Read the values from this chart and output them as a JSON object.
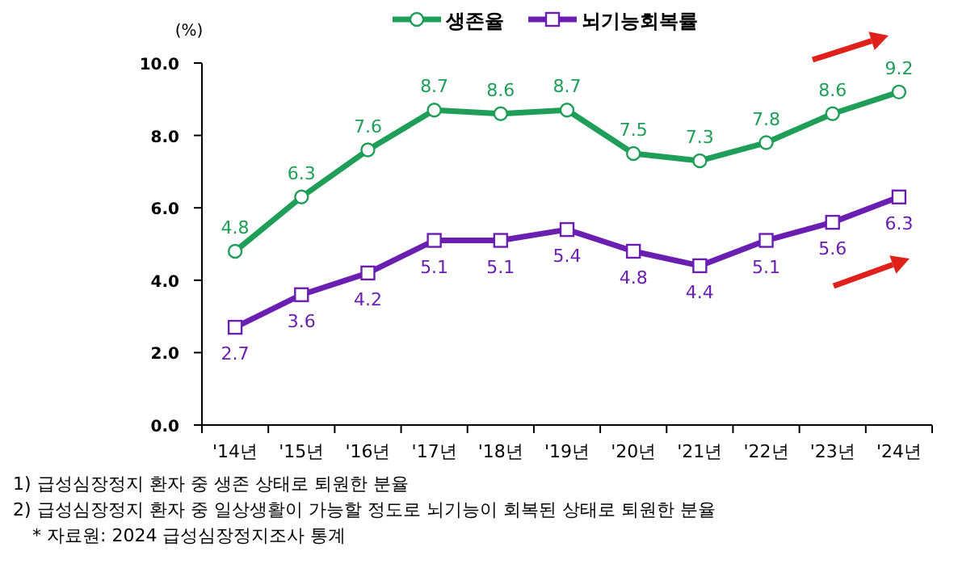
{
  "chart_data": {
    "type": "line",
    "ylabel": "(%)",
    "categories": [
      "'14년",
      "'15년",
      "'16년",
      "'17년",
      "'18년",
      "'19년",
      "'20년",
      "'21년",
      "'22년",
      "'23년",
      "'24년"
    ],
    "series": [
      {
        "name": "생존율",
        "color": "#1f9e5a",
        "marker": "circle",
        "values": [
          4.8,
          6.3,
          7.6,
          8.7,
          8.6,
          8.7,
          7.5,
          7.3,
          7.8,
          8.6,
          9.2
        ]
      },
      {
        "name": "뇌기능회복률",
        "color": "#6a1fb0",
        "marker": "square",
        "values": [
          2.7,
          3.6,
          4.2,
          5.1,
          5.1,
          5.4,
          4.8,
          4.4,
          5.1,
          5.6,
          6.3
        ]
      }
    ],
    "ylim": [
      0,
      10
    ],
    "yticks": [
      {
        "value": 0,
        "label": "0.0"
      },
      {
        "value": 2,
        "label": "2.0"
      },
      {
        "value": 4,
        "label": "4.0"
      },
      {
        "value": 6,
        "label": "6.0"
      },
      {
        "value": 8,
        "label": "8.0"
      },
      {
        "value": 10,
        "label": "10.0"
      }
    ],
    "data_labels": true,
    "grid": false,
    "legend": "top",
    "annotations": [
      "1)  급성심장정지 환자 중 생존 상태로 퇴원한 분율",
      "2)  급성심장정지 환자 중 일상생활이 가능할 정도로 뇌기능이 회복된 상태로 퇴원한 분율",
      "* 자료원: 2024 급성심장정지조사 통계"
    ]
  }
}
